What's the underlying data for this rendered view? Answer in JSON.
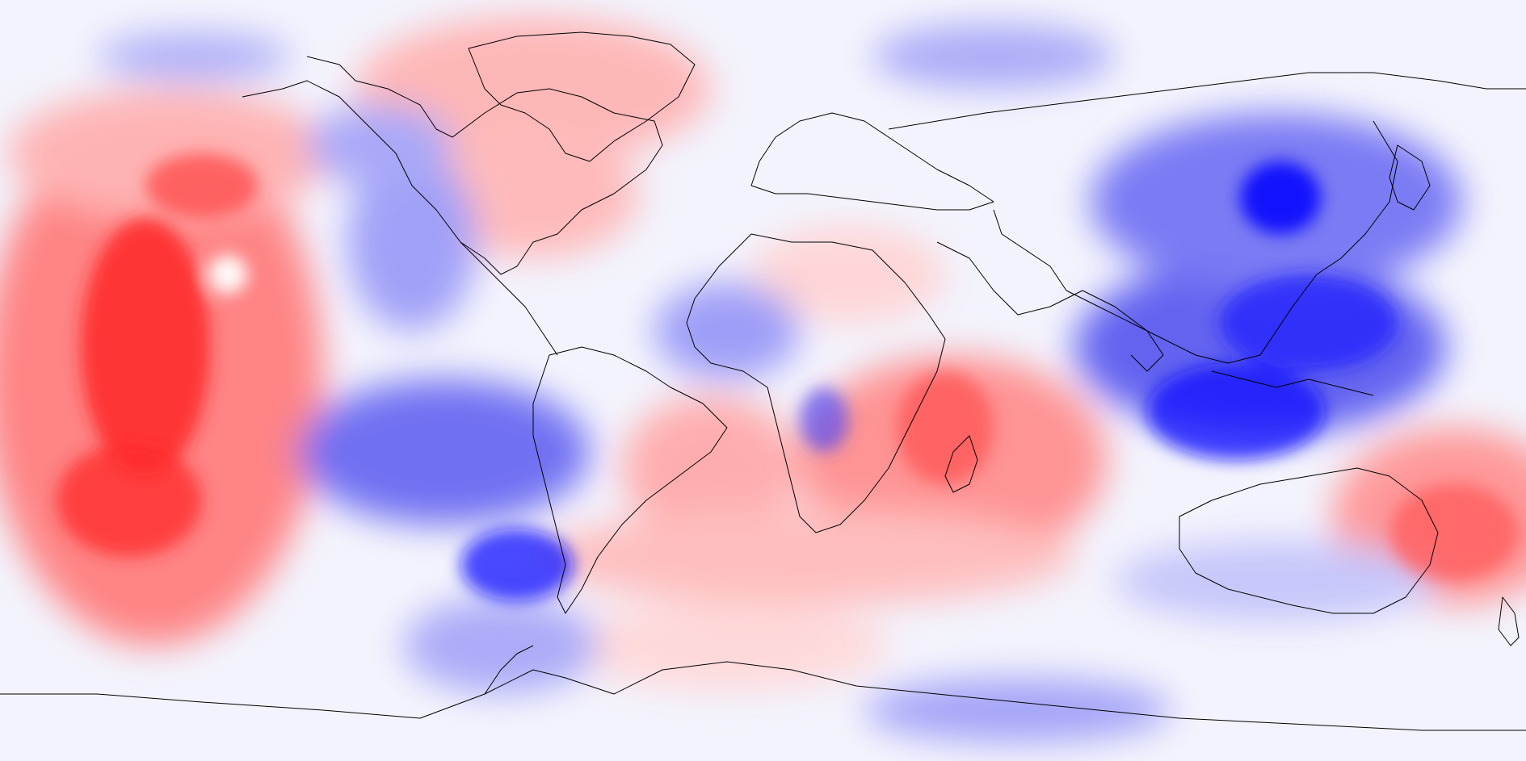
{
  "map": {
    "projection": "equirectangular",
    "field_type": "filled anomaly contours",
    "colormap": "bwr",
    "colors": {
      "strong_negative": "#0000ff",
      "neutral": "#ffffff",
      "strong_positive": "#ff0000",
      "coastline": "#000000",
      "background": "#f4f4fc"
    },
    "colorbar": "none",
    "title": "",
    "coastlines": true,
    "country_borders": true
  }
}
